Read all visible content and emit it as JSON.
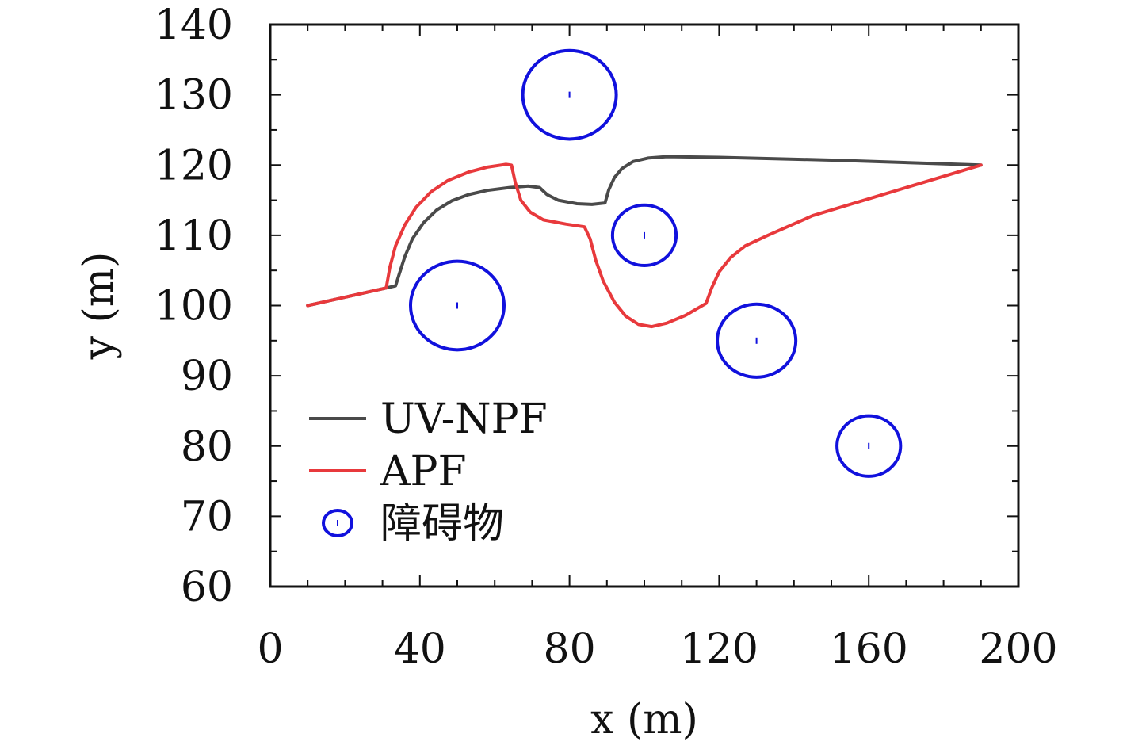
{
  "chart_data": {
    "type": "line",
    "title": "",
    "xlabel": "x (m)",
    "ylabel": "y (m)",
    "xlim": [
      0,
      200
    ],
    "ylim": [
      60,
      140
    ],
    "xticks": [
      0,
      40,
      80,
      120,
      160,
      200
    ],
    "yticks": [
      60,
      70,
      80,
      90,
      100,
      110,
      120,
      130,
      140
    ],
    "grid": false,
    "legend_position": "bottom-left",
    "series": [
      {
        "name": "UV-NPF",
        "color": "#4a4a4a",
        "points": [
          [
            10,
            100
          ],
          [
            33.5,
            102.8
          ],
          [
            34.5,
            104.5
          ],
          [
            36,
            107
          ],
          [
            38,
            109.5
          ],
          [
            41,
            111.8
          ],
          [
            44.5,
            113.6
          ],
          [
            48.5,
            114.9
          ],
          [
            53,
            115.8
          ],
          [
            58,
            116.4
          ],
          [
            64,
            116.8
          ],
          [
            69,
            117
          ],
          [
            72,
            116.8
          ],
          [
            74,
            115.8
          ],
          [
            77,
            115
          ],
          [
            82,
            114.5
          ],
          [
            86,
            114.4
          ],
          [
            89.5,
            114.6
          ],
          [
            90.5,
            116.5
          ],
          [
            92,
            118.2
          ],
          [
            94,
            119.5
          ],
          [
            97,
            120.5
          ],
          [
            101,
            121
          ],
          [
            106,
            121.2
          ],
          [
            120,
            121.1
          ],
          [
            150,
            120.7
          ],
          [
            190,
            120
          ]
        ]
      },
      {
        "name": "APF",
        "color": "#e8393c",
        "points": [
          [
            10,
            100
          ],
          [
            31,
            102.5
          ],
          [
            32,
            105.5
          ],
          [
            33.5,
            108.5
          ],
          [
            36,
            111.5
          ],
          [
            39,
            114
          ],
          [
            43,
            116.2
          ],
          [
            47.5,
            117.8
          ],
          [
            53,
            119
          ],
          [
            58,
            119.7
          ],
          [
            63,
            120.1
          ],
          [
            64.5,
            120
          ],
          [
            65.5,
            117.5
          ],
          [
            67,
            115
          ],
          [
            69.5,
            113.3
          ],
          [
            73,
            112.2
          ],
          [
            79,
            111.6
          ],
          [
            84,
            111.2
          ],
          [
            85.5,
            109.5
          ],
          [
            87,
            106.5
          ],
          [
            89,
            103.5
          ],
          [
            92,
            100.5
          ],
          [
            95,
            98.5
          ],
          [
            98.5,
            97.3
          ],
          [
            102,
            97
          ],
          [
            106,
            97.5
          ],
          [
            111,
            98.6
          ],
          [
            116.5,
            100.3
          ],
          [
            118,
            102.5
          ],
          [
            120,
            104.8
          ],
          [
            123,
            106.8
          ],
          [
            127,
            108.5
          ],
          [
            133,
            110
          ],
          [
            145,
            112.8
          ],
          [
            160,
            115.2
          ],
          [
            190,
            120
          ]
        ]
      }
    ],
    "obstacles": {
      "name": "障碍物",
      "color": "#1111dd",
      "items": [
        {
          "cx": 50,
          "cy": 100,
          "rx": 12.5,
          "ry": 6.3
        },
        {
          "cx": 80,
          "cy": 130,
          "rx": 12.5,
          "ry": 6.3
        },
        {
          "cx": 100,
          "cy": 110,
          "rx": 8.5,
          "ry": 4.3
        },
        {
          "cx": 130,
          "cy": 95,
          "rx": 10.5,
          "ry": 5.2
        },
        {
          "cx": 160,
          "cy": 80,
          "rx": 8.5,
          "ry": 4.3
        }
      ]
    }
  }
}
